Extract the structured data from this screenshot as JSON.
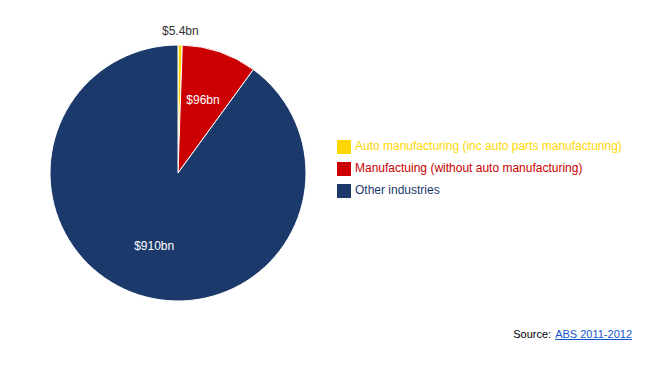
{
  "chart_data": {
    "type": "pie",
    "categories": [
      "Auto manufacturing (inc auto parts manufacturing)",
      "Manufactuing (without auto manufacturing)",
      "Other industries"
    ],
    "values": [
      5.4,
      96,
      910
    ],
    "value_labels": [
      "$5.4bn",
      "$96bn",
      "$910bn"
    ],
    "data_labels": true,
    "colors": [
      "#FFD700",
      "#CC0000",
      "#1B3A6B"
    ],
    "legend": "right",
    "annotations": [
      {
        "text": "Source:"
      },
      {
        "text": "ABS 2011-2012",
        "color": "#1155CC"
      }
    ]
  }
}
